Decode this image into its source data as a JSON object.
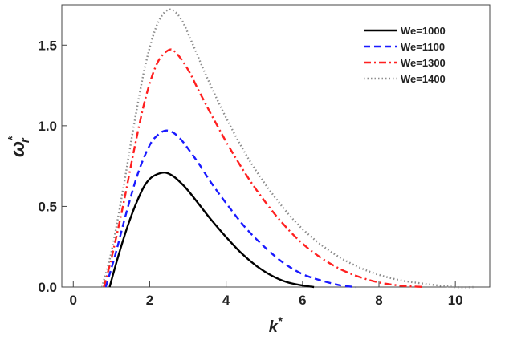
{
  "chart_data": {
    "type": "line",
    "xlabel": {
      "base": "k",
      "sup": "*"
    },
    "ylabel": {
      "base": "ω",
      "sup": "*",
      "sub": "r"
    },
    "xlim": [
      -0.3,
      10.9
    ],
    "ylim": [
      0,
      1.75
    ],
    "xticks": [
      0,
      2,
      4,
      6,
      8,
      10
    ],
    "xtick_labels": [
      "0",
      "2",
      "4",
      "6",
      "8",
      "10"
    ],
    "yticks": [
      0.0,
      0.5,
      1.0,
      1.5
    ],
    "ytick_labels": [
      "0.0",
      "0.5",
      "1.0",
      "1.5"
    ],
    "grid": false,
    "legend_position": "top-right",
    "series": [
      {
        "name": "We=1000",
        "color": "#000000",
        "dash": "solid",
        "x": [
          0.95,
          1.2,
          1.5,
          1.8,
          2.0,
          2.2,
          2.4,
          2.6,
          2.8,
          3.0,
          3.3,
          3.6,
          4.0,
          4.4,
          4.8,
          5.2,
          5.6,
          6.0,
          6.3
        ],
        "y": [
          0.0,
          0.21,
          0.43,
          0.6,
          0.67,
          0.7,
          0.71,
          0.69,
          0.65,
          0.6,
          0.51,
          0.42,
          0.31,
          0.21,
          0.13,
          0.07,
          0.03,
          0.01,
          0.0
        ]
      },
      {
        "name": "We=1100",
        "color": "#1a1aff",
        "dash": "dashed",
        "x": [
          0.85,
          1.1,
          1.4,
          1.7,
          2.0,
          2.2,
          2.4,
          2.6,
          2.8,
          3.0,
          3.3,
          3.6,
          4.0,
          4.5,
          5.0,
          5.5,
          6.0,
          6.5,
          7.0,
          7.4
        ],
        "y": [
          0.0,
          0.2,
          0.47,
          0.71,
          0.88,
          0.94,
          0.97,
          0.96,
          0.92,
          0.86,
          0.76,
          0.65,
          0.52,
          0.37,
          0.25,
          0.15,
          0.08,
          0.04,
          0.01,
          0.0
        ]
      },
      {
        "name": "We=1300",
        "color": "#ff2020",
        "dash": "dashdot",
        "x": [
          0.8,
          1.0,
          1.3,
          1.6,
          1.9,
          2.2,
          2.5,
          2.7,
          3.0,
          3.3,
          3.7,
          4.2,
          4.8,
          5.5,
          6.2,
          7.0,
          7.8,
          8.5,
          9.2
        ],
        "y": [
          0.0,
          0.18,
          0.5,
          0.86,
          1.18,
          1.39,
          1.47,
          1.45,
          1.35,
          1.21,
          1.03,
          0.82,
          0.6,
          0.39,
          0.23,
          0.11,
          0.04,
          0.01,
          0.0
        ]
      },
      {
        "name": "We=1400",
        "color": "#8c8c8c",
        "dash": "dotted",
        "x": [
          0.75,
          1.0,
          1.3,
          1.6,
          1.9,
          2.2,
          2.5,
          2.8,
          3.1,
          3.5,
          4.0,
          4.6,
          5.3,
          6.0,
          6.8,
          7.6,
          8.4,
          9.2,
          10.0,
          10.5
        ],
        "y": [
          0.0,
          0.22,
          0.6,
          1.02,
          1.39,
          1.63,
          1.72,
          1.67,
          1.52,
          1.3,
          1.05,
          0.79,
          0.55,
          0.36,
          0.21,
          0.11,
          0.05,
          0.02,
          0.0,
          0.0
        ]
      }
    ]
  }
}
